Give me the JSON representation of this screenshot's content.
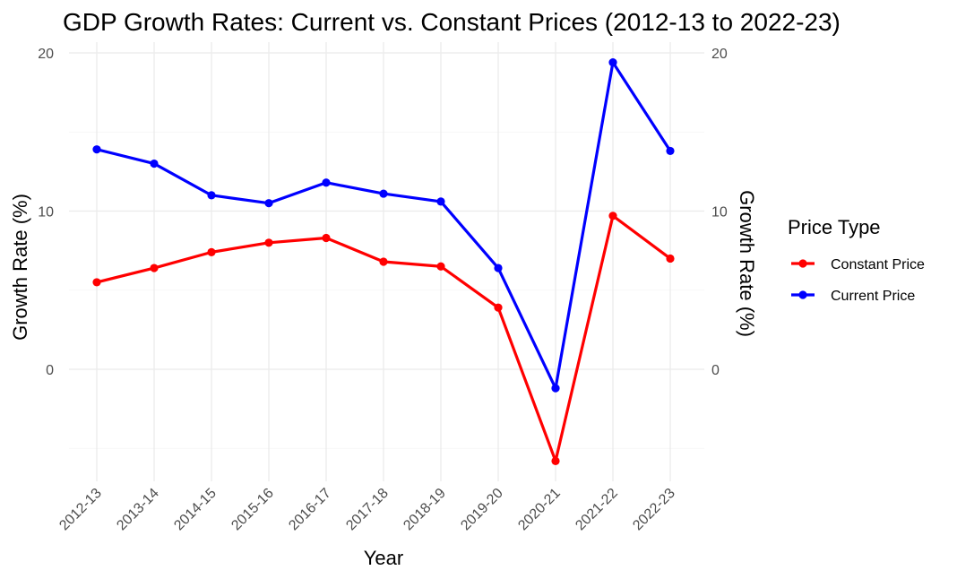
{
  "chart_data": {
    "type": "line",
    "title": "GDP Growth Rates: Current vs. Constant Prices (2012-13 to 2022-23)",
    "xlabel": "Year",
    "ylabel": "Growth Rate (%)",
    "ylabel_right": "Growth Rate (%)",
    "categories": [
      "2012-13",
      "2013-14",
      "2014-15",
      "2015-16",
      "2016-17",
      "2017-18",
      "2018-19",
      "2019-20",
      "2020-21",
      "2021-22",
      "2022-23"
    ],
    "ylim": [
      -7.0,
      20.5
    ],
    "yticks": [
      0,
      10,
      20
    ],
    "yticks_minor": [
      -5,
      5,
      15
    ],
    "grid": true,
    "legend": {
      "title": "Price Type",
      "position": "right"
    },
    "series": [
      {
        "name": "Constant Price",
        "color": "#ff0000",
        "values": [
          5.5,
          6.4,
          7.4,
          8.0,
          8.3,
          6.8,
          6.5,
          3.9,
          -5.8,
          9.7,
          7.0
        ]
      },
      {
        "name": "Current Price",
        "color": "#0000ff",
        "values": [
          13.9,
          13.0,
          11.0,
          10.5,
          11.8,
          11.1,
          10.6,
          6.4,
          -1.2,
          19.4,
          13.8
        ]
      }
    ]
  }
}
